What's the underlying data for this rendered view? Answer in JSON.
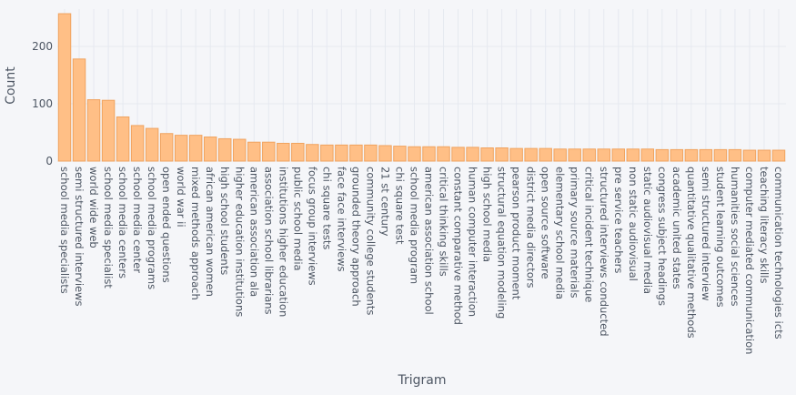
{
  "chart_data": {
    "type": "bar",
    "title": "",
    "xlabel": "Trigram",
    "ylabel": "Count",
    "ylim": [
      0,
      265
    ],
    "yticks": [
      0,
      100,
      200
    ],
    "grid": true,
    "legend": "none",
    "bar_color": "#ffbf86",
    "bar_edge_color": "#f0a35f",
    "background_color": "#f5f6f9",
    "grid_color": "#e6e9f0",
    "text_color": "#4d5663",
    "categories": [
      "school media specialists",
      "semi structured interviews",
      "world wide web",
      "school media specialist",
      "school media centers",
      "school media center",
      "school media programs",
      "open ended questions",
      "world war ii",
      "mixed methods approach",
      "african american women",
      "high school students",
      "higher education institutions",
      "american association ala",
      "association school librarians",
      "institutions higher education",
      "public school media",
      "focus group interviews",
      "chi square tests",
      "face face interviews",
      "grounded theory approach",
      "community college students",
      "21 st century",
      "chi square test",
      "school media program",
      "american association school",
      "critical thinking skills",
      "constant comparative method",
      "human computer interaction",
      "high school media",
      "structural equation modeling",
      "pearson product moment",
      "district media directors",
      "open source software",
      "elementary school media",
      "primary source materials",
      "critical incident technique",
      "structured interviews conducted",
      "pre service teachers",
      "non static audiovisual",
      "static audiovisual media",
      "congress subject headings",
      "academic united states",
      "quantitative qualitative methods",
      "semi structured interview",
      "student learning outcomes",
      "humanities social sciences",
      "computer mediated communication",
      "teaching literacy skills",
      "communication technologies icts"
    ],
    "values": [
      257,
      178,
      107,
      106,
      77,
      62,
      57,
      48,
      45,
      45,
      42,
      39,
      38,
      33,
      33,
      31,
      31,
      29,
      28,
      28,
      28,
      28,
      27,
      26,
      25,
      25,
      25,
      24,
      24,
      23,
      23,
      22,
      22,
      22,
      21,
      21,
      21,
      21,
      21,
      21,
      21,
      20,
      20,
      20,
      20,
      20,
      20,
      19,
      19,
      19
    ]
  }
}
